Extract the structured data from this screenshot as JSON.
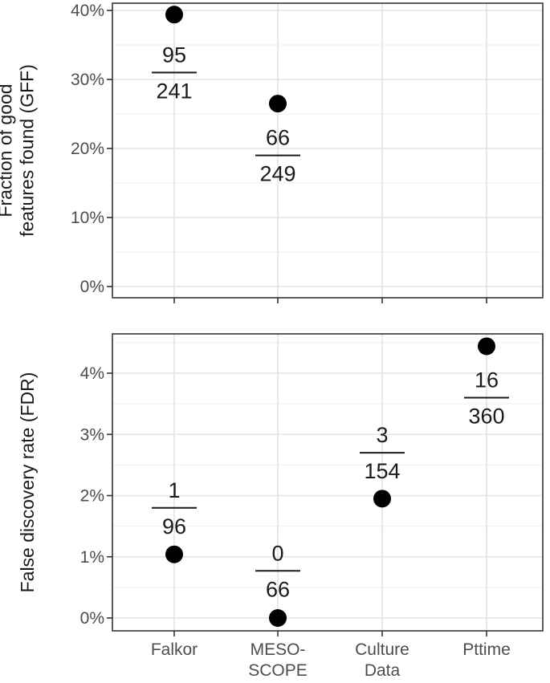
{
  "chart_data": [
    {
      "type": "scatter",
      "panel": "top",
      "ylabel_lines": [
        "Fraction of good",
        "features found (GFF)"
      ],
      "ylim": [
        -1.5,
        41.5
      ],
      "yticks": [
        0,
        10,
        20,
        30,
        40
      ],
      "ytick_labels": [
        "0%",
        "10%",
        "20%",
        "30%",
        "40%"
      ],
      "categories": [
        "Falkor",
        "MESO-SCOPE",
        "Culture Data",
        "Pttime"
      ],
      "grid": true,
      "points": [
        {
          "category": "Falkor",
          "value": 39.4,
          "numerator": "95",
          "denominator": "241",
          "label_value": 31
        },
        {
          "category": "MESO-SCOPE",
          "value": 26.5,
          "numerator": "66",
          "denominator": "249",
          "label_value": 19
        }
      ]
    },
    {
      "type": "scatter",
      "panel": "bottom",
      "ylabel_lines": [
        "False discovery rate (FDR)"
      ],
      "ylim": [
        -0.2,
        4.8
      ],
      "yticks": [
        0,
        1,
        2,
        3,
        4
      ],
      "ytick_labels": [
        "0%",
        "1%",
        "2%",
        "3%",
        "4%"
      ],
      "categories": [
        "Falkor",
        "MESO-SCOPE",
        "Culture Data",
        "Pttime"
      ],
      "xtick_labels": [
        [
          "Falkor"
        ],
        [
          "MESO-",
          "SCOPE"
        ],
        [
          "Culture",
          "Data"
        ],
        [
          "Pttime"
        ]
      ],
      "grid": true,
      "points": [
        {
          "category": "Falkor",
          "value": 1.04,
          "numerator": "1",
          "denominator": "96",
          "label_value": 1.8
        },
        {
          "category": "MESO-SCOPE",
          "value": 0.0,
          "numerator": "0",
          "denominator": "66",
          "label_value": 0.77
        },
        {
          "category": "Culture Data",
          "value": 1.95,
          "numerator": "3",
          "denominator": "154",
          "label_value": 2.7
        },
        {
          "category": "Pttime",
          "value": 4.44,
          "numerator": "16",
          "denominator": "360",
          "label_value": 3.6
        }
      ]
    }
  ]
}
